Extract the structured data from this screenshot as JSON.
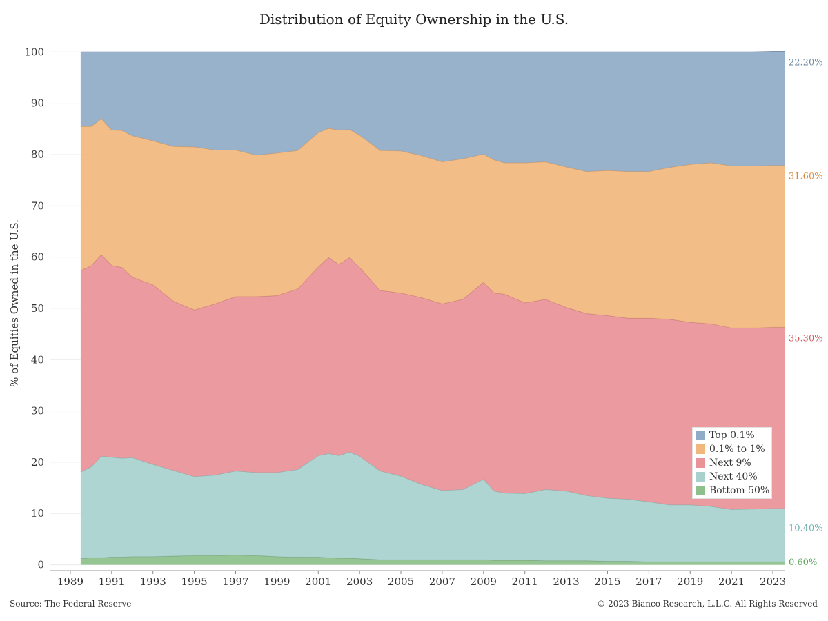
{
  "chart_data": {
    "type": "area",
    "stacked": true,
    "title": "Distribution of Equity Ownership in the U.S.",
    "ylabel": "% of Equities Owned in the U.S.",
    "xlabel": "",
    "xlim": [
      1988,
      2023.6
    ],
    "ylim": [
      -1,
      103
    ],
    "yticks": [
      0,
      10,
      20,
      30,
      40,
      50,
      60,
      70,
      80,
      90,
      100
    ],
    "xticks": [
      1989,
      1991,
      1993,
      1995,
      1997,
      1999,
      2001,
      2003,
      2005,
      2007,
      2009,
      2011,
      2013,
      2015,
      2017,
      2019,
      2021,
      2023
    ],
    "grid": true,
    "legend_position": "bottom-right",
    "x": [
      1989.5,
      1990.0,
      1990.5,
      1991.0,
      1991.5,
      1992.0,
      1993.0,
      1994.0,
      1995.0,
      1996.0,
      1997.0,
      1998.0,
      1999.0,
      2000.0,
      2001.0,
      2001.5,
      2002.0,
      2002.5,
      2003.0,
      2004.0,
      2005.0,
      2006.0,
      2007.0,
      2008.0,
      2009.0,
      2009.5,
      2010.0,
      2011.0,
      2012.0,
      2013.0,
      2014.0,
      2015.0,
      2016.0,
      2017.0,
      2018.0,
      2019.0,
      2020.0,
      2021.0,
      2022.0,
      2023.0,
      2023.6
    ],
    "series": [
      {
        "name": "Bottom 50%",
        "color": "#8dc08b",
        "values": [
          1.2,
          1.4,
          1.4,
          1.5,
          1.5,
          1.6,
          1.6,
          1.7,
          1.8,
          1.8,
          1.9,
          1.8,
          1.6,
          1.5,
          1.5,
          1.4,
          1.3,
          1.3,
          1.2,
          1.0,
          1.0,
          1.0,
          1.0,
          1.0,
          1.0,
          0.9,
          0.9,
          0.9,
          0.8,
          0.8,
          0.8,
          0.7,
          0.7,
          0.6,
          0.6,
          0.6,
          0.6,
          0.6,
          0.6,
          0.6,
          0.6
        ]
      },
      {
        "name": "Next 40%",
        "color": "#a8d1ce",
        "values": [
          16.9,
          17.7,
          19.8,
          19.5,
          19.3,
          19.3,
          18.0,
          16.7,
          15.4,
          15.7,
          16.4,
          16.2,
          16.4,
          17.1,
          19.8,
          20.3,
          20.0,
          20.7,
          20.0,
          17.3,
          16.3,
          14.7,
          13.5,
          13.7,
          15.7,
          13.5,
          13.1,
          13.0,
          13.9,
          13.6,
          12.7,
          12.3,
          12.1,
          11.7,
          11.1,
          11.1,
          10.8,
          10.2,
          10.3,
          10.4,
          10.4
        ]
      },
      {
        "name": "Next 9%",
        "color": "#e99398",
        "values": [
          39.3,
          39.2,
          39.3,
          37.4,
          37.2,
          35.2,
          35.0,
          33.0,
          32.5,
          33.4,
          34.0,
          34.3,
          34.5,
          35.2,
          36.8,
          38.2,
          37.3,
          37.9,
          36.8,
          35.2,
          35.7,
          36.4,
          36.4,
          37.1,
          38.4,
          38.6,
          38.8,
          37.2,
          37.1,
          35.8,
          35.5,
          35.6,
          35.3,
          35.8,
          36.2,
          35.6,
          35.6,
          35.4,
          35.3,
          35.3,
          35.3
        ]
      },
      {
        "name": "0.1% to 1%",
        "color": "#f2b77d",
        "values": [
          28.1,
          27.2,
          26.5,
          26.4,
          26.7,
          27.6,
          28.1,
          30.2,
          31.8,
          30.0,
          28.6,
          27.6,
          27.8,
          27.0,
          26.2,
          25.2,
          26.2,
          25.0,
          25.8,
          27.3,
          27.7,
          27.7,
          27.7,
          27.4,
          25.0,
          26.0,
          25.6,
          27.3,
          26.8,
          27.4,
          27.7,
          28.3,
          28.6,
          28.6,
          29.6,
          30.8,
          31.4,
          31.6,
          31.6,
          31.6,
          31.6
        ]
      },
      {
        "name": "Top 0.1%",
        "color": "#90abc8",
        "values": [
          14.5,
          14.5,
          13.0,
          15.2,
          15.3,
          16.3,
          17.3,
          18.4,
          18.5,
          19.1,
          19.1,
          20.1,
          19.7,
          19.2,
          15.7,
          14.9,
          15.2,
          15.1,
          16.2,
          19.2,
          19.3,
          20.2,
          21.4,
          20.8,
          19.9,
          21.0,
          21.6,
          21.6,
          21.4,
          22.4,
          23.3,
          23.1,
          23.3,
          23.3,
          22.5,
          21.9,
          21.6,
          22.2,
          22.2,
          22.2,
          22.2
        ]
      }
    ],
    "end_labels": [
      {
        "series": "Top 0.1%",
        "text": "22.20%",
        "color": "#6b86a2"
      },
      {
        "series": "0.1% to 1%",
        "text": "31.60%",
        "color": "#d98a3c"
      },
      {
        "series": "Next 9%",
        "text": "35.30%",
        "color": "#cf5a60"
      },
      {
        "series": "Next 40%",
        "text": "10.40%",
        "color": "#6fb0aa"
      },
      {
        "series": "Bottom 50%",
        "text": "0.60%",
        "color": "#5aa25a"
      }
    ],
    "legend": [
      {
        "label": "Top 0.1%",
        "color": "#90abc8"
      },
      {
        "label": "0.1% to 1%",
        "color": "#f2b77d"
      },
      {
        "label": "Next 9%",
        "color": "#e99398"
      },
      {
        "label": "Next 40%",
        "color": "#a8d1ce"
      },
      {
        "label": "Bottom 50%",
        "color": "#8dc08b"
      }
    ]
  },
  "footer": {
    "source": "Source: The Federal Reserve",
    "copyright": "© 2023 Bianco Research, L.L.C. All Rights Reserved"
  }
}
